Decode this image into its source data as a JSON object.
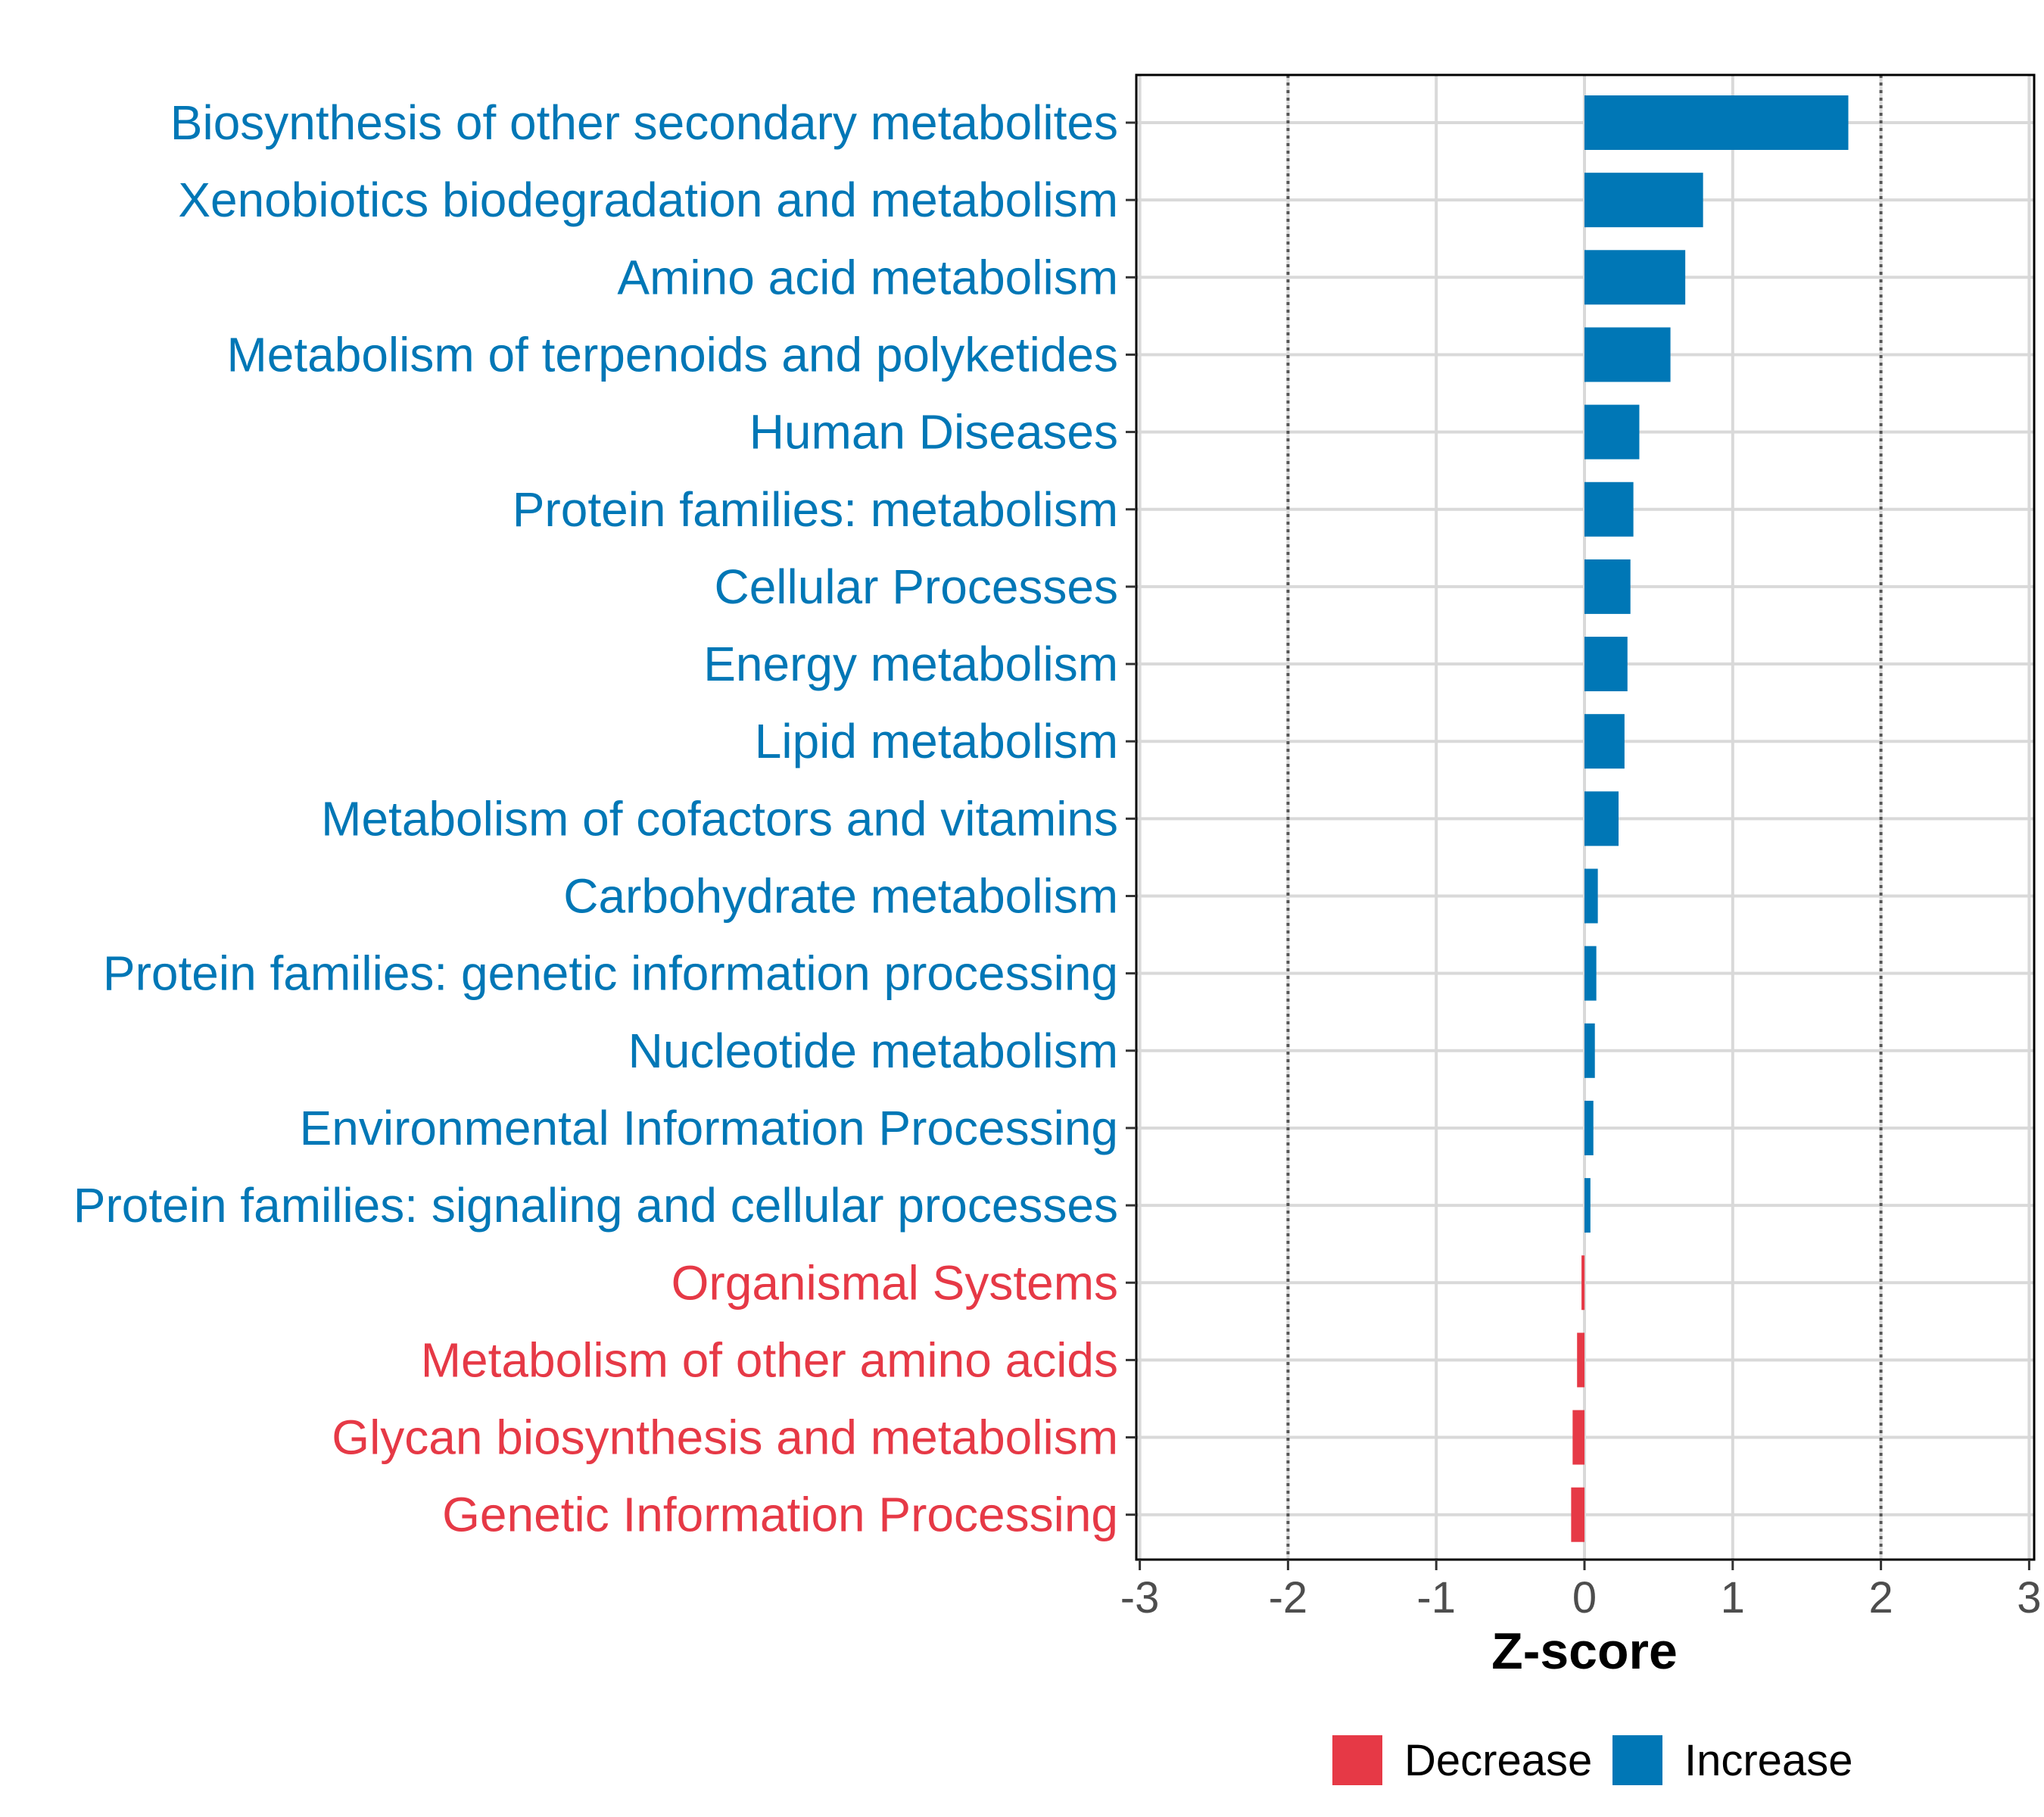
{
  "chart_data": {
    "type": "bar",
    "orientation": "horizontal",
    "xlabel": "Z-score",
    "xlim": [
      -3,
      3
    ],
    "xticks": [
      -3,
      -2,
      -1,
      0,
      1,
      2,
      3
    ],
    "tick_labels": [
      "-3",
      "-2",
      "-1",
      "0",
      "1",
      "2",
      "3"
    ],
    "reference_lines": [
      -2,
      2
    ],
    "grid": true,
    "categories": [
      "Biosynthesis of other secondary metabolites",
      "Xenobiotics biodegradation and metabolism",
      "Amino acid metabolism",
      "Metabolism of terpenoids and polyketides",
      "Human Diseases",
      "Protein families: metabolism",
      "Cellular Processes",
      "Energy metabolism",
      "Lipid metabolism",
      "Metabolism of cofactors and vitamins",
      "Carbohydrate metabolism",
      "Protein families: genetic information processing",
      "Nucleotide metabolism",
      "Environmental Information Processing",
      "Protein families: signaling and cellular processes",
      "Organismal Systems",
      "Metabolism of other amino acids",
      "Glycan biosynthesis and metabolism",
      "Genetic Information Processing"
    ],
    "values": [
      1.78,
      0.8,
      0.68,
      0.58,
      0.37,
      0.33,
      0.31,
      0.29,
      0.27,
      0.23,
      0.09,
      0.08,
      0.07,
      0.06,
      0.04,
      -0.02,
      -0.05,
      -0.08,
      -0.09
    ],
    "groups": [
      "Increase",
      "Increase",
      "Increase",
      "Increase",
      "Increase",
      "Increase",
      "Increase",
      "Increase",
      "Increase",
      "Increase",
      "Increase",
      "Increase",
      "Increase",
      "Increase",
      "Increase",
      "Decrease",
      "Decrease",
      "Decrease",
      "Decrease"
    ],
    "legend": [
      {
        "label": "Decrease",
        "color": "#E63946"
      },
      {
        "label": "Increase",
        "color": "#0077B6"
      }
    ],
    "legend_position": "bottom"
  },
  "colors": {
    "increase": "#0077B6",
    "decrease": "#E63946",
    "grid": "#d9d9d9",
    "axis": "#000000",
    "reference_line": "#555555"
  }
}
